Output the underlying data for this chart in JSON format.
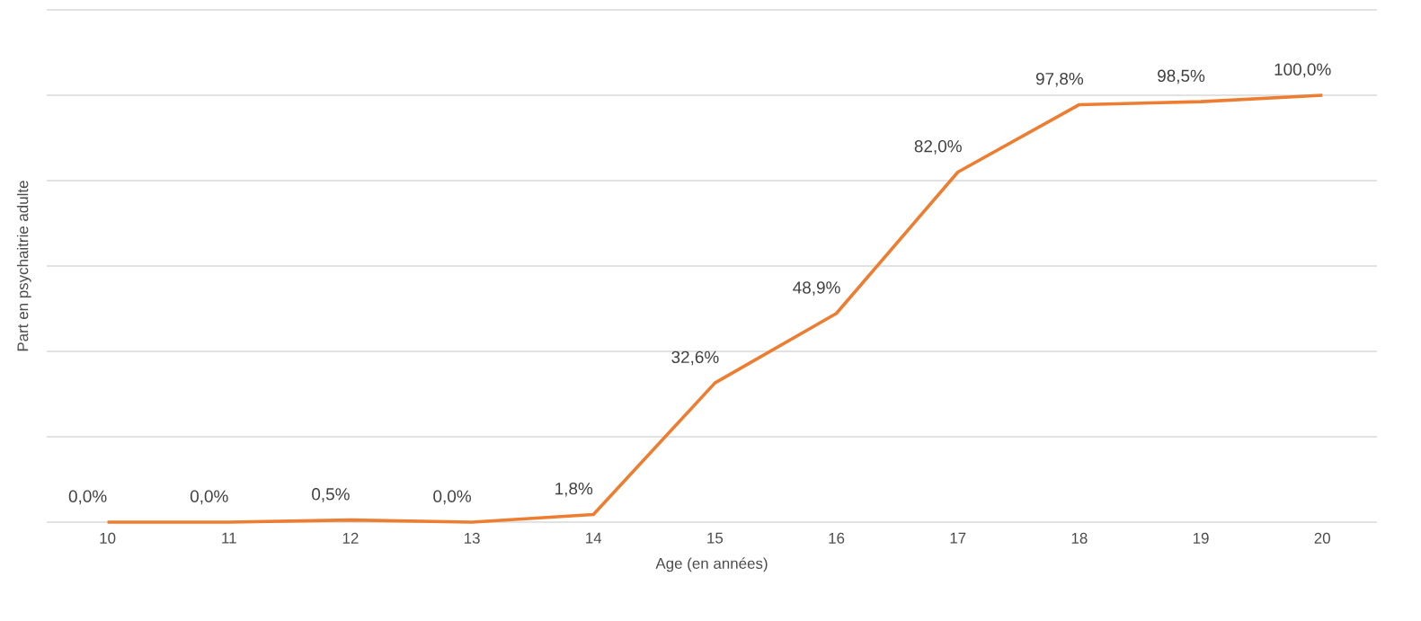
{
  "chart_data": {
    "type": "line",
    "xlabel": "Age (en années)",
    "ylabel": "Part en psychaitrie adulte",
    "categories": [
      "10",
      "11",
      "12",
      "13",
      "14",
      "15",
      "16",
      "17",
      "18",
      "19",
      "20"
    ],
    "values": [
      0,
      0,
      0.5,
      0,
      1.8,
      32.6,
      48.9,
      82.0,
      97.8,
      98.5,
      100
    ],
    "value_labels": [
      "0,0%",
      "0,0%",
      "0,5%",
      "0,0%",
      "1,8%",
      "32,6%",
      "48,9%",
      "82,0%",
      "97,8%",
      "98,5%",
      "100,0%"
    ],
    "color": "#ed7d31",
    "ylim": [
      0,
      120
    ],
    "yticks": [
      {
        "value": 0,
        "label": null
      },
      {
        "value": 20,
        "label": null
      },
      {
        "value": 40,
        "label": null
      },
      {
        "value": 60,
        "label": null
      },
      {
        "value": 80,
        "label": null
      },
      {
        "value": 100,
        "label": null
      },
      {
        "value": 120,
        "label": null
      }
    ],
    "grid": "y",
    "tick_labels": "x"
  }
}
